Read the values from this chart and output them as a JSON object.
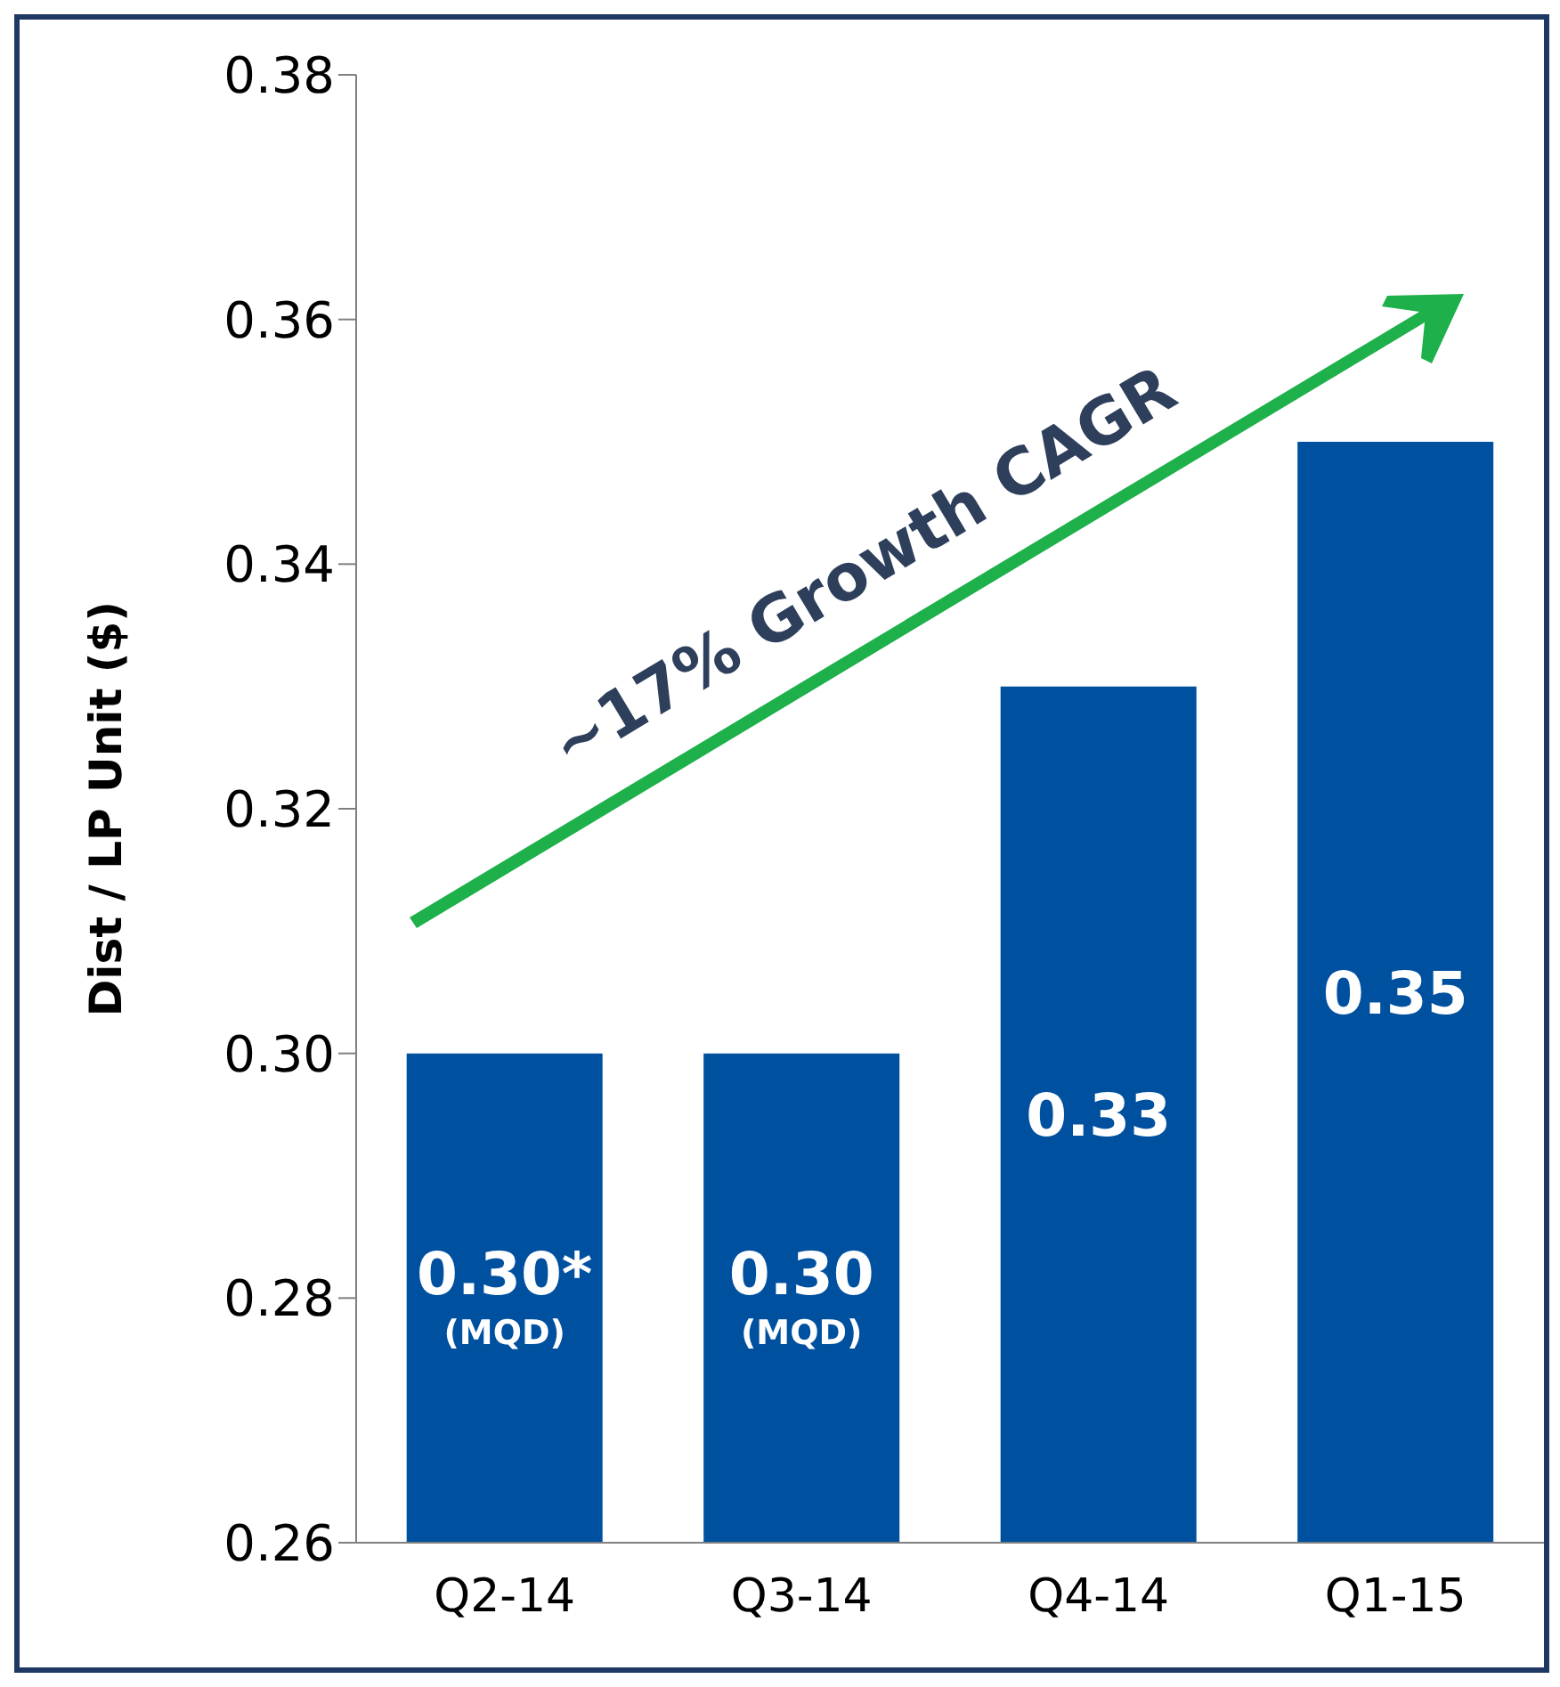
{
  "chart_data": {
    "type": "bar",
    "ylabel": "Dist / LP Unit ($)",
    "categories": [
      "Q2-14",
      "Q3-14",
      "Q4-14",
      "Q1-15"
    ],
    "values": [
      0.3,
      0.3,
      0.33,
      0.35
    ],
    "color": "#0050a0",
    "value_labels": [
      "0.30*",
      "0.30",
      "0.33",
      "0.35"
    ],
    "ylim": [
      0.26,
      0.38
    ],
    "yticks": [
      {
        "value": 0.26,
        "label": "0.26"
      },
      {
        "value": 0.28,
        "label": "0.28"
      },
      {
        "value": 0.3,
        "label": "0.30"
      },
      {
        "value": 0.32,
        "label": "0.32"
      },
      {
        "value": 0.34,
        "label": "0.34"
      },
      {
        "value": 0.36,
        "label": "0.36"
      },
      {
        "value": 0.38,
        "label": "0.38"
      }
    ],
    "grid": false,
    "legend": false,
    "annotations": [
      "~17% Growth CAGR",
      "(MQD)",
      "(MQD)"
    ]
  }
}
